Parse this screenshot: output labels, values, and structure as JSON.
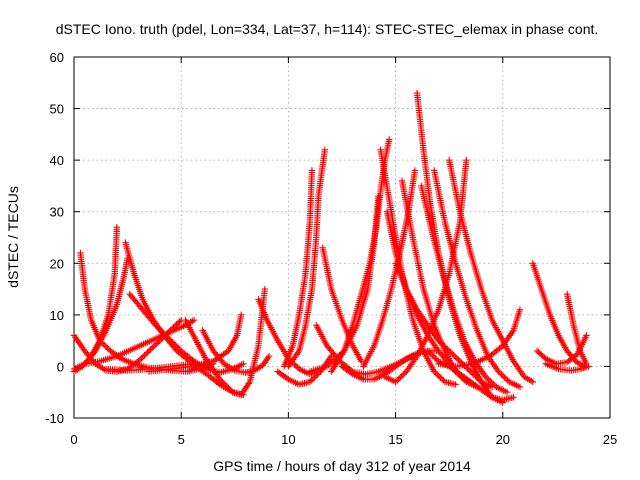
{
  "chart_data": {
    "type": "scatter",
    "title": "dSTEC Iono. truth (pdel, Lon=334, Lat=37, h=114): STEC-STEC_elemax in phase cont.",
    "xlabel": "GPS time / hours of day 312 of year 2014",
    "ylabel": "dSTEC  / TECUs",
    "xlim": [
      0,
      25
    ],
    "ylim": [
      -10,
      60
    ],
    "xticks": [
      0,
      5,
      10,
      15,
      20,
      25
    ],
    "yticks": [
      -10,
      0,
      10,
      20,
      30,
      40,
      50,
      60
    ],
    "xtick_labels": [
      "0",
      "5",
      "10",
      "15",
      "20",
      "25"
    ],
    "ytick_labels": [
      "-10",
      "0",
      "10",
      "20",
      "30",
      "40",
      "50",
      "60"
    ],
    "grid": true,
    "legend": "none",
    "marker": "+",
    "color": "#ff0000",
    "series": [
      {
        "x": [
          0.0,
          0.5,
          1.0,
          1.5,
          2.0,
          2.5,
          3.0,
          3.5,
          4.0,
          4.5,
          5.0
        ],
        "y": [
          6,
          3,
          0.5,
          -0.8,
          -1.0,
          -0.5,
          1,
          3,
          5,
          7,
          9
        ]
      },
      {
        "x": [
          0.3,
          0.5,
          0.8,
          1.2,
          1.7,
          2.2,
          2.8,
          3.4,
          4.0,
          4.6,
          5.3,
          5.8,
          6.3
        ],
        "y": [
          22,
          15,
          9,
          5,
          3,
          1.5,
          0.5,
          -0.2,
          -0.5,
          -0.8,
          -1.0,
          -0.5,
          1
        ]
      },
      {
        "x": [
          0.0,
          0.4,
          0.8,
          1.2,
          1.6,
          1.9,
          2.0
        ],
        "y": [
          -1,
          0,
          2,
          5,
          10,
          18,
          27
        ]
      },
      {
        "x": [
          0.0,
          0.5,
          1.0,
          1.5,
          2.0,
          2.3,
          2.5
        ],
        "y": [
          -0.5,
          0.5,
          3,
          7,
          12,
          17,
          21
        ]
      },
      {
        "x": [
          2.4,
          2.8,
          3.2,
          3.7,
          4.2,
          4.8,
          5.4,
          6.0,
          6.5
        ],
        "y": [
          24,
          18,
          13,
          9,
          6,
          3,
          1,
          0,
          0.5
        ]
      },
      {
        "x": [
          2.6,
          3.2,
          3.8,
          4.4,
          5.0,
          5.6,
          6.2,
          6.8,
          7.4,
          7.9
        ],
        "y": [
          14,
          11,
          8,
          5.5,
          3,
          1,
          -0.5,
          -1.2,
          -0.5,
          0.5
        ]
      },
      {
        "x": [
          0.5,
          1.2,
          2.0,
          2.8,
          3.6,
          4.4,
          5.2,
          5.6
        ],
        "y": [
          0.5,
          1,
          2,
          3.5,
          5,
          6.5,
          8,
          9
        ]
      },
      {
        "x": [
          1.5,
          2.5,
          3.5,
          4.5,
          5.5,
          6.2,
          6.8,
          7.4,
          7.9
        ],
        "y": [
          -0.5,
          -0.8,
          -0.5,
          0,
          0.5,
          -1.5,
          -3.5,
          -5,
          -5.5
        ]
      },
      {
        "x": [
          5.2,
          5.7,
          6.2,
          6.8,
          7.4,
          7.8,
          8.2,
          8.6,
          8.9
        ],
        "y": [
          9,
          5,
          1,
          -2.5,
          -5,
          -5.5,
          -3,
          4,
          15
        ]
      },
      {
        "x": [
          6.0,
          6.5,
          7.0,
          7.5,
          8.0,
          8.4,
          8.8,
          9.1
        ],
        "y": [
          7,
          3,
          0.5,
          -0.8,
          -1.2,
          -0.8,
          0.2,
          2
        ]
      },
      {
        "x": [
          3.5,
          4.5,
          5.5,
          6.5,
          7.2,
          7.6,
          7.8
        ],
        "y": [
          -1,
          -0.5,
          0,
          1,
          3,
          6,
          10
        ]
      },
      {
        "x": [
          8.6,
          9.0,
          9.5,
          10.0,
          10.5,
          11.0,
          11.3
        ],
        "y": [
          13,
          9,
          5,
          1.5,
          -0.5,
          -1.5,
          -1.0
        ]
      },
      {
        "x": [
          9.5,
          10.0,
          10.5,
          11.0,
          11.5,
          12.0
        ],
        "y": [
          -1,
          -2.5,
          -3.5,
          -3,
          -1,
          2
        ]
      },
      {
        "x": [
          10.0,
          10.5,
          10.8,
          11.1,
          11.3,
          11.4,
          11.7
        ],
        "y": [
          0,
          3,
          8,
          15,
          25,
          33,
          42
        ]
      },
      {
        "x": [
          9.8,
          10.2,
          10.5,
          10.8,
          11.0,
          11.1
        ],
        "y": [
          0,
          4,
          10,
          18,
          28,
          38
        ]
      },
      {
        "x": [
          11.6,
          12.0,
          12.5,
          13.0,
          13.4
        ],
        "y": [
          23,
          15,
          9,
          4,
          1
        ]
      },
      {
        "x": [
          11.3,
          11.8,
          12.4,
          13.0,
          13.6,
          14.2,
          14.8,
          15.3,
          15.8
        ],
        "y": [
          8,
          4,
          1,
          -1,
          -1.5,
          -1,
          0,
          1,
          2
        ]
      },
      {
        "x": [
          12.0,
          12.6,
          13.0,
          13.4,
          13.8,
          14.1,
          14.3,
          14.5,
          14.7
        ],
        "y": [
          -1,
          3,
          8,
          14,
          20,
          27,
          34,
          40,
          44
        ]
      },
      {
        "x": [
          11.0,
          11.8,
          12.6,
          13.2,
          13.7,
          14.0,
          14.2
        ],
        "y": [
          -1,
          0,
          3,
          8,
          15,
          24,
          33
        ]
      },
      {
        "x": [
          12.5,
          13.0,
          13.5,
          14.0,
          14.5,
          15.0,
          15.5,
          16.0,
          16.5,
          17.0
        ],
        "y": [
          0,
          -1.5,
          -2.5,
          -2.5,
          -1.5,
          0,
          1.5,
          2.5,
          3,
          3
        ]
      },
      {
        "x": [
          13.5,
          14.0,
          14.4,
          14.8,
          15.2,
          15.6,
          15.9
        ],
        "y": [
          0,
          4,
          9,
          15,
          22,
          30,
          38
        ]
      },
      {
        "x": [
          14.3,
          14.8,
          15.3,
          15.8,
          16.3,
          16.8,
          17.3,
          17.8
        ],
        "y": [
          42,
          30,
          18,
          9,
          3,
          -1,
          -3,
          -3.5
        ]
      },
      {
        "x": [
          14.6,
          15.0,
          15.5,
          16.0,
          16.5,
          17.0,
          17.5,
          18.0,
          18.5
        ],
        "y": [
          30,
          22,
          15,
          10,
          6,
          3,
          0.5,
          -1.5,
          -3
        ]
      },
      {
        "x": [
          15.0,
          15.5,
          16.0,
          16.5,
          17.0,
          17.5,
          18.0,
          18.5,
          19.0,
          19.5
        ],
        "y": [
          20,
          15,
          11,
          8,
          5,
          3,
          1,
          -1,
          -3,
          -4
        ]
      },
      {
        "x": [
          15.3,
          15.8,
          16.3,
          16.8,
          17.3,
          17.8,
          18.3,
          18.8
        ],
        "y": [
          36,
          25,
          15,
          8,
          3,
          -1,
          -3,
          -4
        ]
      },
      {
        "x": [
          14.5,
          15.0,
          15.5,
          16.0,
          16.5,
          17.0,
          17.5,
          18.0,
          18.3
        ],
        "y": [
          -2,
          -3,
          -1,
          2,
          6,
          11,
          18,
          28,
          40
        ]
      },
      {
        "x": [
          16.0,
          16.3,
          16.6,
          17.0,
          17.5,
          18.0,
          18.5,
          19.0,
          19.5,
          20.0
        ],
        "y": [
          53,
          42,
          32,
          22,
          13,
          6,
          1,
          -3,
          -6,
          -7
        ]
      },
      {
        "x": [
          16.2,
          16.7,
          17.2,
          17.7,
          18.2,
          18.7,
          19.2,
          19.7,
          20.2
        ],
        "y": [
          35,
          26,
          18,
          11,
          5,
          1,
          -2,
          -4,
          -5
        ]
      },
      {
        "x": [
          16.8,
          17.3,
          17.8,
          18.3,
          18.8,
          19.3,
          19.8,
          20.3,
          20.8
        ],
        "y": [
          38,
          28,
          20,
          13,
          7,
          2,
          -1,
          -3,
          -4
        ]
      },
      {
        "x": [
          17.5,
          18.0,
          18.5,
          19.0,
          19.5,
          20.0,
          20.5,
          21.0,
          21.4
        ],
        "y": [
          40,
          30,
          22,
          15,
          9,
          5,
          1,
          -2,
          -3
        ]
      },
      {
        "x": [
          16.5,
          17.0,
          17.5,
          18.0,
          18.5,
          19.0,
          19.5,
          20.0,
          20.5
        ],
        "y": [
          3,
          1,
          0,
          -1.5,
          -3,
          -4.5,
          -6,
          -6.5,
          -6
        ]
      },
      {
        "x": [
          17.0,
          17.8,
          18.6,
          19.4,
          20.0,
          20.5,
          20.8
        ],
        "y": [
          0.5,
          0,
          0.5,
          2,
          4,
          7,
          11
        ]
      },
      {
        "x": [
          21.4,
          21.8,
          22.2,
          22.6,
          23.0,
          23.4,
          23.8
        ],
        "y": [
          20,
          15,
          10,
          6,
          3,
          1,
          0
        ]
      },
      {
        "x": [
          21.6,
          22.0,
          22.5,
          23.0,
          23.5,
          23.9
        ],
        "y": [
          3,
          1.5,
          0.5,
          0.8,
          2.5,
          6
        ]
      },
      {
        "x": [
          23.0,
          23.3,
          23.6,
          23.9
        ],
        "y": [
          14,
          8,
          3,
          0.5
        ]
      },
      {
        "x": [
          22.0,
          22.6,
          23.2,
          23.6,
          24.0
        ],
        "y": [
          0.5,
          -0.5,
          -0.8,
          -0.5,
          0
        ]
      }
    ]
  }
}
